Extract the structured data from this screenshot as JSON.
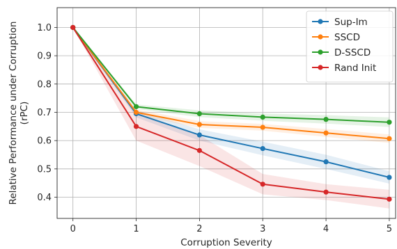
{
  "chart_data": {
    "type": "line",
    "title": "",
    "xlabel": "Corruption Severity",
    "ylabel": "Relative Performance under Corruption",
    "ylabel_line2": "(rPC)",
    "x": [
      0,
      1,
      2,
      3,
      4,
      5
    ],
    "xlim": [
      -0.25,
      5.1
    ],
    "ylim": [
      0.325,
      1.07
    ],
    "xticks": [
      0,
      1,
      2,
      3,
      4,
      5
    ],
    "yticks": [
      0.4,
      0.5,
      0.6,
      0.7,
      0.8,
      0.9,
      1.0
    ],
    "ytick_labels": [
      "0.4",
      "0.5",
      "0.6",
      "0.7",
      "0.8",
      "0.9",
      "1.0"
    ],
    "grid": true,
    "legend_position": "top-right",
    "series": [
      {
        "name": "Sup-Im",
        "color": "#1f77b4",
        "values": [
          1.0,
          0.695,
          0.62,
          0.572,
          0.525,
          0.47
        ],
        "band": [
          [
            1.0,
            1.0
          ],
          [
            0.682,
            0.708
          ],
          [
            0.6,
            0.64
          ],
          [
            0.548,
            0.596
          ],
          [
            0.5,
            0.55
          ],
          [
            0.448,
            0.492
          ]
        ]
      },
      {
        "name": "SSCD",
        "color": "#ff7f0e",
        "values": [
          1.0,
          0.7,
          0.657,
          0.647,
          0.627,
          0.607
        ],
        "band": [
          [
            1.0,
            1.0
          ],
          [
            0.69,
            0.71
          ],
          [
            0.645,
            0.669
          ],
          [
            0.635,
            0.659
          ],
          [
            0.613,
            0.641
          ],
          [
            0.592,
            0.622
          ]
        ]
      },
      {
        "name": "D-SSCD",
        "color": "#2ca02c",
        "values": [
          1.0,
          0.72,
          0.695,
          0.683,
          0.675,
          0.665
        ],
        "band": [
          [
            1.0,
            1.0
          ],
          [
            0.712,
            0.728
          ],
          [
            0.683,
            0.707
          ],
          [
            0.67,
            0.696
          ],
          [
            0.66,
            0.69
          ],
          [
            0.648,
            0.682
          ]
        ]
      },
      {
        "name": "Rand Init",
        "color": "#d62728",
        "values": [
          1.0,
          0.65,
          0.565,
          0.446,
          0.418,
          0.393
        ],
        "band": [
          [
            1.0,
            1.0
          ],
          [
            0.6,
            0.7
          ],
          [
            0.51,
            0.62
          ],
          [
            0.41,
            0.482
          ],
          [
            0.39,
            0.446
          ],
          [
            0.36,
            0.426
          ]
        ]
      }
    ]
  }
}
